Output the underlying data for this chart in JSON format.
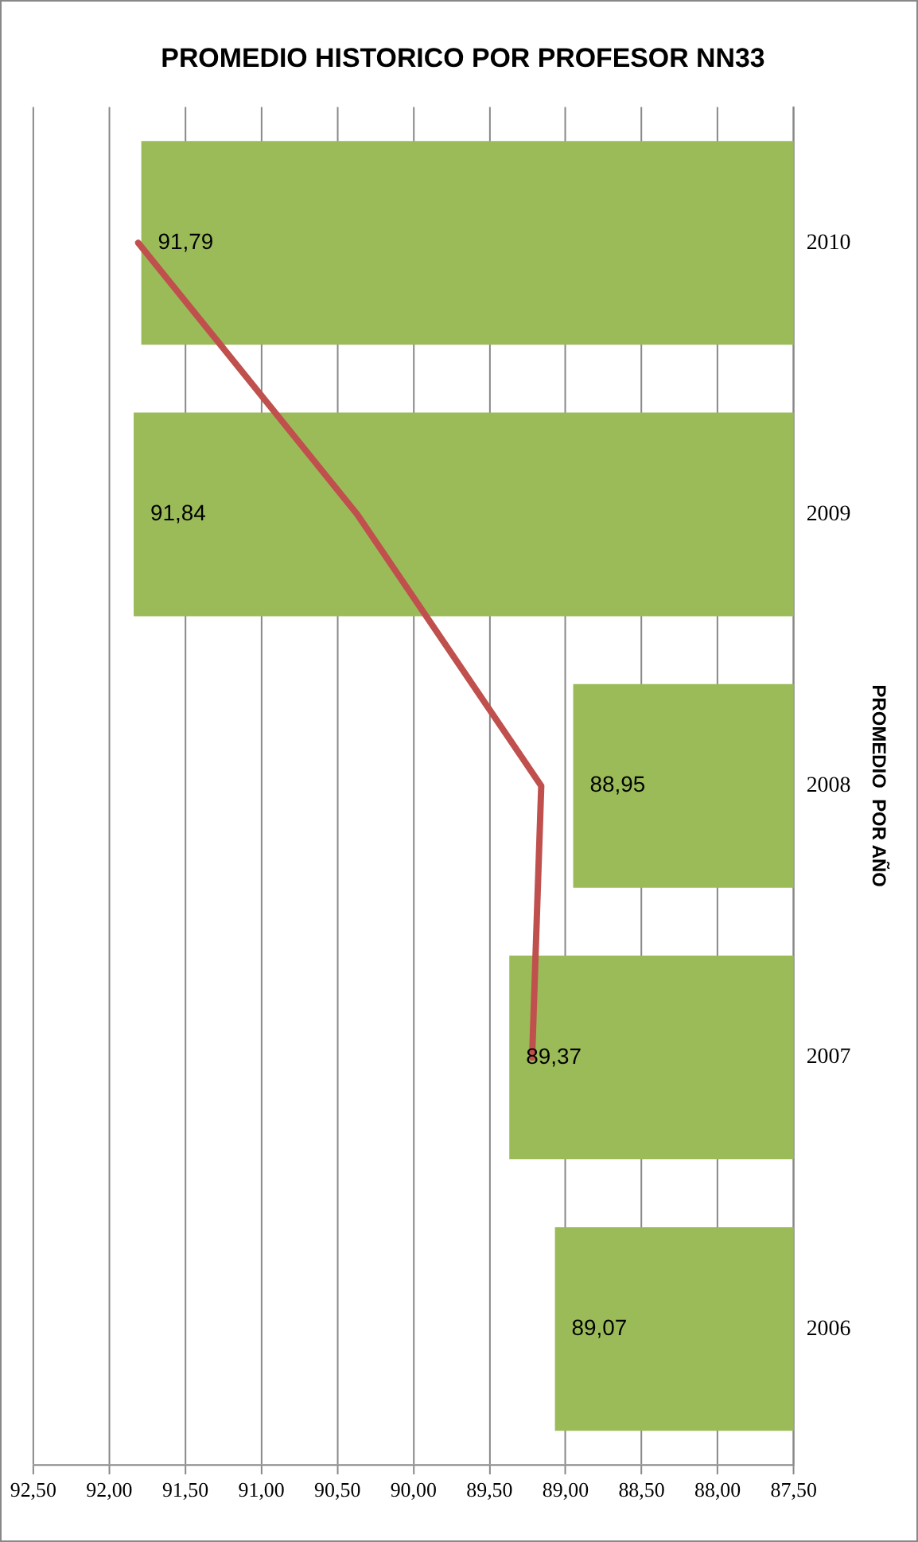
{
  "chart_data": {
    "type": "bar",
    "orientation": "horizontal",
    "title": "PROMEDIO HISTORICO POR PROFESOR NN33",
    "ylabel": "PROMEDIO  POR AÑO",
    "categories": [
      "2010",
      "2009",
      "2008",
      "2007",
      "2006"
    ],
    "series": [
      {
        "color": "#9bbb59",
        "values": [
          91.79,
          91.84,
          88.95,
          89.37,
          89.07
        ],
        "value_labels": [
          "91,79",
          "91,84",
          "88,95",
          "89,37",
          "89,07"
        ]
      },
      {
        "type": "line",
        "color": "#c0504d",
        "values": [
          91.81,
          90.37,
          89.16,
          89.22,
          null
        ],
        "marker": "none"
      }
    ],
    "xlim": [
      92.5,
      87.5
    ],
    "xticks": [
      {
        "value": 92.5,
        "label": "92,50"
      },
      {
        "value": 92,
        "label": "92,00"
      },
      {
        "value": 91.5,
        "label": "91,50"
      },
      {
        "value": 91,
        "label": "91,00"
      },
      {
        "value": 90.5,
        "label": "90,50"
      },
      {
        "value": 90,
        "label": "90,00"
      },
      {
        "value": 89.5,
        "label": "89,50"
      },
      {
        "value": 89,
        "label": "89,00"
      },
      {
        "value": 88.5,
        "label": "88,50"
      },
      {
        "value": 88,
        "label": "88,00"
      },
      {
        "value": 87.5,
        "label": "87,50"
      }
    ],
    "grid": "x",
    "legend": false
  }
}
